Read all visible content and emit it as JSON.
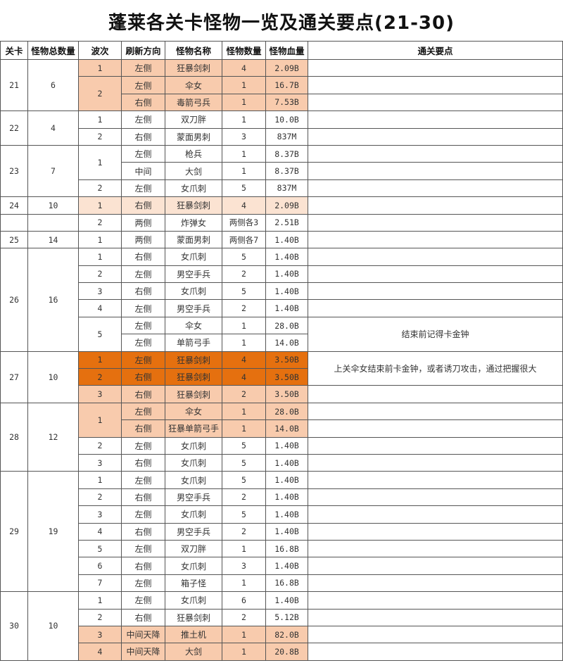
{
  "title": "蓬莱各关卡怪物一览及通关要点(21-30)",
  "colors": {
    "peach": "#f8cbad",
    "light": "#fbe3d2",
    "orange": "#e5700f"
  },
  "headers": [
    "关卡",
    "怪物总数量",
    "波次",
    "刷新方向",
    "怪物名称",
    "怪物数量",
    "怪物血量",
    "通关要点"
  ],
  "levels": [
    {
      "id": "21",
      "total": "6",
      "waves": [
        {
          "wave": "1",
          "rows": [
            {
              "dir": "左侧",
              "name": "狂暴剑刺",
              "count": "4",
              "hp": "2.09B",
              "hl": "peach"
            }
          ]
        },
        {
          "wave": "2",
          "rows": [
            {
              "dir": "左侧",
              "name": "伞女",
              "count": "1",
              "hp": "16.7B",
              "hl": "peach"
            },
            {
              "dir": "右侧",
              "name": "毒箭弓兵",
              "count": "1",
              "hp": "7.53B",
              "hl": "peach"
            }
          ]
        }
      ]
    },
    {
      "id": "22",
      "total": "4",
      "waves": [
        {
          "wave": "1",
          "rows": [
            {
              "dir": "左侧",
              "name": "双刀胖",
              "count": "1",
              "hp": "10.0B"
            }
          ]
        },
        {
          "wave": "2",
          "rows": [
            {
              "dir": "右侧",
              "name": "蒙面男刺",
              "count": "3",
              "hp": "837M"
            }
          ]
        }
      ]
    },
    {
      "id": "23",
      "total": "7",
      "waves": [
        {
          "wave": "1",
          "rows": [
            {
              "dir": "左侧",
              "name": "枪兵",
              "count": "1",
              "hp": "8.37B"
            },
            {
              "dir": "中间",
              "name": "大剑",
              "count": "1",
              "hp": "8.37B"
            }
          ]
        },
        {
          "wave": "2",
          "rows": [
            {
              "dir": "左侧",
              "name": "女爪刺",
              "count": "5",
              "hp": "837M"
            }
          ]
        }
      ]
    },
    {
      "id": "24",
      "total": "10",
      "waves": [
        {
          "wave": "1",
          "rows": [
            {
              "dir": "右侧",
              "name": "狂暴剑刺",
              "count": "4",
              "hp": "2.09B",
              "hl": "light"
            }
          ]
        }
      ]
    },
    {
      "id": "",
      "total": "",
      "waves": [
        {
          "wave": "2",
          "rows": [
            {
              "dir": "两侧",
              "name": "炸弹女",
              "count": "两侧各3",
              "hp": "2.51B"
            }
          ]
        }
      ]
    },
    {
      "id": "25",
      "total": "14",
      "waves": [
        {
          "wave": "1",
          "rows": [
            {
              "dir": "两侧",
              "name": "蒙面男刺",
              "count": "两侧各7",
              "hp": "1.40B"
            }
          ]
        }
      ]
    },
    {
      "id": "26",
      "total": "16",
      "waves": [
        {
          "wave": "1",
          "rows": [
            {
              "dir": "右侧",
              "name": "女爪刺",
              "count": "5",
              "hp": "1.40B"
            }
          ]
        },
        {
          "wave": "2",
          "rows": [
            {
              "dir": "左侧",
              "name": "男空手兵",
              "count": "2",
              "hp": "1.40B"
            }
          ]
        },
        {
          "wave": "3",
          "rows": [
            {
              "dir": "右侧",
              "name": "女爪刺",
              "count": "5",
              "hp": "1.40B"
            }
          ]
        },
        {
          "wave": "4",
          "rows": [
            {
              "dir": "左侧",
              "name": "男空手兵",
              "count": "2",
              "hp": "1.40B"
            }
          ]
        },
        {
          "wave": "5",
          "rows": [
            {
              "dir": "左侧",
              "name": "伞女",
              "count": "1",
              "hp": "28.0B",
              "tip": "结束前记得卡金钟",
              "tip_span": 2
            },
            {
              "dir": "左侧",
              "name": "单箭弓手",
              "count": "1",
              "hp": "14.0B"
            }
          ]
        }
      ]
    },
    {
      "id": "27",
      "total": "10",
      "waves": [
        {
          "wave": "1",
          "rows": [
            {
              "dir": "左侧",
              "name": "狂暴剑刺",
              "count": "4",
              "hp": "3.50B",
              "hl": "orange",
              "tip": "上关伞女结束前卡金钟，或者诱刀攻击，通过把握很大",
              "tip_span": 2
            }
          ]
        },
        {
          "wave": "2",
          "rows": [
            {
              "dir": "右侧",
              "name": "狂暴剑刺",
              "count": "4",
              "hp": "3.50B",
              "hl": "orange"
            }
          ]
        },
        {
          "wave": "3",
          "rows": [
            {
              "dir": "右侧",
              "name": "狂暴剑刺",
              "count": "2",
              "hp": "3.50B",
              "hl": "peach"
            }
          ]
        }
      ]
    },
    {
      "id": "28",
      "total": "12",
      "waves": [
        {
          "wave": "1",
          "rows": [
            {
              "dir": "左侧",
              "name": "伞女",
              "count": "1",
              "hp": "28.0B",
              "hl": "peach"
            },
            {
              "dir": "右侧",
              "name": "狂暴单箭弓手",
              "count": "1",
              "hp": "14.0B",
              "hl": "peach"
            }
          ]
        },
        {
          "wave": "2",
          "rows": [
            {
              "dir": "左侧",
              "name": "女爪刺",
              "count": "5",
              "hp": "1.40B"
            }
          ]
        },
        {
          "wave": "3",
          "rows": [
            {
              "dir": "右侧",
              "name": "女爪刺",
              "count": "5",
              "hp": "1.40B"
            }
          ]
        }
      ]
    },
    {
      "id": "29",
      "total": "19",
      "waves": [
        {
          "wave": "1",
          "rows": [
            {
              "dir": "左侧",
              "name": "女爪刺",
              "count": "5",
              "hp": "1.40B"
            }
          ]
        },
        {
          "wave": "2",
          "rows": [
            {
              "dir": "右侧",
              "name": "男空手兵",
              "count": "2",
              "hp": "1.40B"
            }
          ]
        },
        {
          "wave": "3",
          "rows": [
            {
              "dir": "左侧",
              "name": "女爪刺",
              "count": "5",
              "hp": "1.40B"
            }
          ]
        },
        {
          "wave": "4",
          "rows": [
            {
              "dir": "右侧",
              "name": "男空手兵",
              "count": "2",
              "hp": "1.40B"
            }
          ]
        },
        {
          "wave": "5",
          "rows": [
            {
              "dir": "左侧",
              "name": "双刀胖",
              "count": "1",
              "hp": "16.8B"
            }
          ]
        },
        {
          "wave": "6",
          "rows": [
            {
              "dir": "右侧",
              "name": "女爪刺",
              "count": "3",
              "hp": "1.40B"
            }
          ]
        },
        {
          "wave": "7",
          "rows": [
            {
              "dir": "左侧",
              "name": "箱子怪",
              "count": "1",
              "hp": "16.8B"
            }
          ]
        }
      ]
    },
    {
      "id": "30",
      "total": "10",
      "waves": [
        {
          "wave": "1",
          "rows": [
            {
              "dir": "左侧",
              "name": "女爪刺",
              "count": "6",
              "hp": "1.40B"
            }
          ]
        },
        {
          "wave": "2",
          "rows": [
            {
              "dir": "右侧",
              "name": "狂暴剑刺",
              "count": "2",
              "hp": "5.12B"
            }
          ]
        },
        {
          "wave": "3",
          "rows": [
            {
              "dir": "中间天降",
              "name": "推土机",
              "count": "1",
              "hp": "82.0B",
              "hl": "peach"
            }
          ]
        },
        {
          "wave": "4",
          "rows": [
            {
              "dir": "中间天降",
              "name": "大剑",
              "count": "1",
              "hp": "20.8B",
              "hl": "peach"
            }
          ]
        }
      ]
    }
  ]
}
